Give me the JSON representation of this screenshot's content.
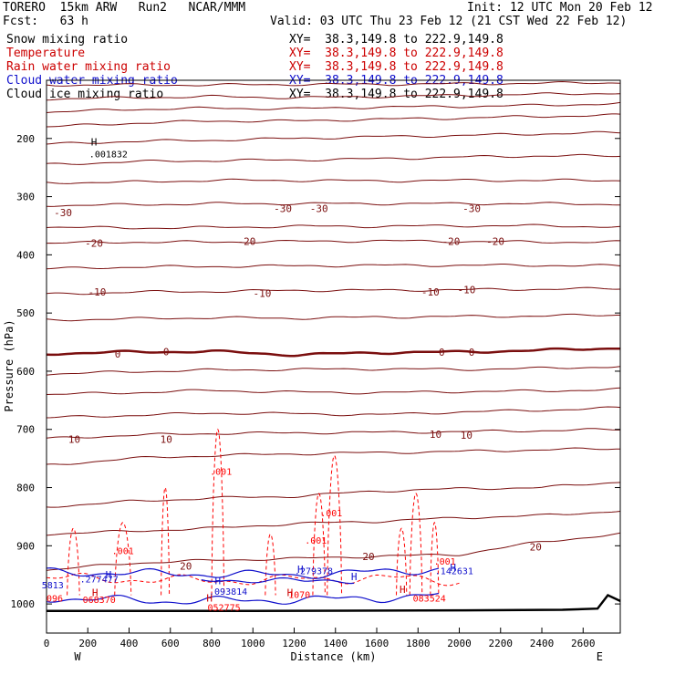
{
  "header": {
    "model_line": "TORERO  15km ARW   Run2   NCAR/MMM",
    "init": "Init: 12 UTC Mon 20 Feb 12",
    "fcst": "Fcst:   63 h",
    "valid": "Valid: 03 UTC Thu 23 Feb 12 (21 CST Wed 22 Feb 12)"
  },
  "legend": [
    {
      "label": "Snow mixing ratio",
      "color": "#000000",
      "xy": "XY=  38.3,149.8 to 222.9,149.8"
    },
    {
      "label": "Temperature",
      "color": "#cc0000",
      "xy": "XY=  38.3,149.8 to 222.9,149.8"
    },
    {
      "label": "Rain water mixing ratio",
      "color": "#cc0000",
      "xy": "XY=  38.3,149.8 to 222.9,149.8"
    },
    {
      "label": "Cloud water mixing ratio",
      "color": "#1010cc",
      "xy": "XY=  38.3,149.8 to 222.9,149.8"
    },
    {
      "label": "Cloud ice mixing ratio",
      "color": "#000000",
      "xy": "XY=  38.3,149.8 to 222.9,149.8"
    }
  ],
  "chart_data": {
    "type": "line",
    "xlabel": "Distance (km)",
    "ylabel": "Pressure (hPa)",
    "xlim": [
      0,
      2780
    ],
    "ylim": [
      100,
      1050
    ],
    "x_ticks": [
      "0",
      "200",
      "400",
      "600",
      "800",
      "1000",
      "1200",
      "1400",
      "1600",
      "1800",
      "2000",
      "2200",
      "2400",
      "2600"
    ],
    "y_ticks": [
      "200",
      "300",
      "400",
      "500",
      "600",
      "700",
      "800",
      "900",
      "1000"
    ],
    "x_endpoints": [
      "W",
      "E"
    ],
    "temperature_isotherms": [
      {
        "x": [
          0,
          400,
          800,
          1200,
          1600,
          2000,
          2400,
          2780
        ],
        "p": [
          108,
          108,
          108,
          107,
          107,
          106,
          105,
          104
        ]
      },
      {
        "x": [
          0,
          400,
          800,
          1200,
          1600,
          2000,
          2400,
          2780
        ],
        "p": [
          132,
          130,
          128,
          130,
          128,
          126,
          124,
          122
        ]
      },
      {
        "x": [
          0,
          400,
          800,
          1200,
          1600,
          2000,
          2400,
          2780
        ],
        "p": [
          155,
          150,
          148,
          149,
          146,
          145,
          143,
          140
        ]
      },
      {
        "x": [
          0,
          400,
          800,
          1200,
          1600,
          2000,
          2400,
          2780
        ],
        "p": [
          180,
          174,
          170,
          170,
          167,
          165,
          162,
          160
        ]
      },
      {
        "x": [
          0,
          400,
          800,
          1200,
          1600,
          2000,
          2400,
          2780
        ],
        "p": [
          210,
          205,
          203,
          200,
          197,
          195,
          192,
          190
        ]
      },
      {
        "x": [
          0,
          400,
          800,
          1200,
          1600,
          2000,
          2400,
          2780
        ],
        "p": [
          245,
          240,
          238,
          237,
          235,
          232,
          230,
          230
        ]
      },
      {
        "x": [
          0,
          400,
          800,
          1200,
          1600,
          2000,
          2400,
          2780
        ],
        "p": [
          276,
          275,
          272,
          272,
          273,
          272,
          272,
          272
        ]
      },
      {
        "x": [
          0,
          400,
          800,
          1200,
          1600,
          2000,
          2400,
          2780
        ],
        "p": [
          315,
          314,
          312,
          312,
          312,
          312,
          312,
          313
        ]
      },
      {
        "x": [
          0,
          400,
          800,
          1200,
          1600,
          2000,
          2400,
          2780
        ],
        "p": [
          352,
          354,
          353,
          351,
          351,
          350,
          350,
          352
        ]
      },
      {
        "x": [
          0,
          400,
          800,
          1200,
          1600,
          2000,
          2400,
          2780
        ],
        "p": [
          380,
          378,
          378,
          377,
          376,
          377,
          378,
          378
        ]
      },
      {
        "x": [
          0,
          400,
          800,
          1200,
          1600,
          2000,
          2400,
          2780
        ],
        "p": [
          424,
          421,
          420,
          419,
          418,
          418,
          418,
          419
        ]
      },
      {
        "x": [
          0,
          400,
          800,
          1200,
          1600,
          2000,
          2400,
          2780
        ],
        "p": [
          468,
          464,
          463,
          461,
          461,
          460,
          459,
          458
        ]
      },
      {
        "x": [
          0,
          400,
          800,
          1200,
          1600,
          2000,
          2400,
          2780
        ],
        "p": [
          512,
          510,
          508,
          509,
          507,
          506,
          505,
          503
        ]
      },
      {
        "x": [
          0,
          400,
          800,
          1200,
          1600,
          2000,
          2400,
          2780
        ],
        "p": [
          570,
          567,
          566,
          572,
          568,
          567,
          564,
          560
        ]
      },
      {
        "x": [
          0,
          400,
          800,
          1200,
          1600,
          2000,
          2400,
          2780
        ],
        "p": [
          605,
          601,
          598,
          597,
          596,
          597,
          595,
          592
        ]
      },
      {
        "x": [
          0,
          400,
          800,
          1200,
          1600,
          2000,
          2400,
          2780
        ],
        "p": [
          640,
          637,
          633,
          636,
          637,
          635,
          634,
          631
        ]
      },
      {
        "x": [
          0,
          400,
          800,
          1200,
          1600,
          2000,
          2400,
          2780
        ],
        "p": [
          680,
          676,
          672,
          673,
          675,
          670,
          667,
          663
        ]
      },
      {
        "x": [
          0,
          400,
          800,
          1200,
          1600,
          2000,
          2400,
          2780
        ],
        "p": [
          716,
          710,
          707,
          706,
          705,
          704,
          702,
          700
        ]
      },
      {
        "x": [
          0,
          400,
          800,
          1200,
          1600,
          2000,
          2400,
          2780
        ],
        "p": [
          762,
          750,
          745,
          742,
          740,
          738,
          735,
          733
        ]
      },
      {
        "x": [
          0,
          400,
          800,
          1200,
          1600,
          2000,
          2400,
          2780
        ],
        "p": [
          833,
          824,
          818,
          815,
          806,
          802,
          800,
          790
        ]
      },
      {
        "x": [
          0,
          400,
          800,
          1200,
          1600,
          2000,
          2400,
          2780
        ],
        "p": [
          880,
          875,
          870,
          862,
          858,
          852,
          848,
          840
        ]
      },
      {
        "x": [
          0,
          400,
          800,
          1200,
          1600,
          2000,
          2400,
          2780
        ],
        "p": [
          942,
          930,
          925,
          922,
          918,
          915,
          893,
          880
        ]
      }
    ],
    "thick_zero_isotherm": {
      "x": [
        0,
        400,
        800,
        1200,
        1600,
        2000,
        2400,
        2780
      ],
      "p": [
        570,
        567,
        566,
        572,
        568,
        567,
        564,
        560
      ]
    },
    "temperature_labels": [
      {
        "text": "-30",
        "x": 80,
        "p": 327
      },
      {
        "text": "-30",
        "x": 1145,
        "p": 320
      },
      {
        "text": "-30",
        "x": 1320,
        "p": 320
      },
      {
        "text": "-30",
        "x": 2060,
        "p": 320
      },
      {
        "text": "-20",
        "x": 230,
        "p": 380
      },
      {
        "text": "-20",
        "x": 970,
        "p": 377
      },
      {
        "text": "-20",
        "x": 1960,
        "p": 377
      },
      {
        "text": "-20",
        "x": 2175,
        "p": 377
      },
      {
        "text": "-10",
        "x": 245,
        "p": 464
      },
      {
        "text": "-10",
        "x": 1045,
        "p": 466
      },
      {
        "text": "-10",
        "x": 1860,
        "p": 464
      },
      {
        "text": "-10",
        "x": 2035,
        "p": 460
      },
      {
        "text": "0",
        "x": 345,
        "p": 570
      },
      {
        "text": "0",
        "x": 580,
        "p": 566
      },
      {
        "text": "0",
        "x": 1915,
        "p": 567
      },
      {
        "text": "0",
        "x": 2060,
        "p": 567
      },
      {
        "text": "10",
        "x": 135,
        "p": 717
      },
      {
        "text": "10",
        "x": 580,
        "p": 717
      },
      {
        "text": "10",
        "x": 1885,
        "p": 708
      },
      {
        "text": "10",
        "x": 2035,
        "p": 710
      },
      {
        "text": "20",
        "x": 675,
        "p": 935
      },
      {
        "text": "20",
        "x": 1560,
        "p": 918
      },
      {
        "text": "20",
        "x": 2370,
        "p": 902
      }
    ],
    "rain_labels": [
      {
        "text": ".001",
        "x": 845,
        "p": 772
      },
      {
        "text": ".001",
        "x": 1380,
        "p": 843
      },
      {
        "text": ".001",
        "x": 1305,
        "p": 890
      },
      {
        "text": ".001",
        "x": 370,
        "p": 908
      },
      {
        "text": ".001",
        "x": 1930,
        "p": 926
      },
      {
        "text": "068370",
        "x": 255,
        "p": 992
      },
      {
        "text": "052775",
        "x": 860,
        "p": 1005
      },
      {
        "text": "083524",
        "x": 1855,
        "p": 990
      },
      {
        "text": "1070",
        "x": 1225,
        "p": 983
      },
      {
        "text": "096",
        "x": 40,
        "p": 990
      }
    ],
    "cloud_water_labels": [
      {
        "text": ".277477",
        "x": 255,
        "p": 957
      },
      {
        "text": ".093814",
        "x": 880,
        "p": 978
      },
      {
        "text": ".279378",
        "x": 1295,
        "p": 943
      },
      {
        "text": ".142631",
        "x": 1975,
        "p": 943
      },
      {
        "text": "5813",
        "x": 30,
        "p": 967
      }
    ],
    "snow_labels": [
      {
        "text": ".001832",
        "x": 300,
        "p": 226
      }
    ],
    "maxima_H": [
      {
        "x": 230,
        "p": 206,
        "color": "#000000"
      },
      {
        "x": 300,
        "p": 950,
        "color": "#1010cc"
      },
      {
        "x": 830,
        "p": 960,
        "color": "#1010cc"
      },
      {
        "x": 1230,
        "p": 940,
        "color": "#1010cc"
      },
      {
        "x": 1970,
        "p": 937,
        "color": "#1010cc"
      },
      {
        "x": 235,
        "p": 980,
        "color": "#cc0000"
      },
      {
        "x": 790,
        "p": 990,
        "color": "#cc0000"
      },
      {
        "x": 1180,
        "p": 980,
        "color": "#cc0000"
      },
      {
        "x": 1725,
        "p": 975,
        "color": "#cc0000"
      },
      {
        "x": 1490,
        "p": 953,
        "color": "#1010cc"
      }
    ]
  },
  "colors": {
    "temperature": "#7a0e0e",
    "rain": "#ff0000",
    "cloud_water": "#1010cc",
    "axes": "#000000"
  }
}
